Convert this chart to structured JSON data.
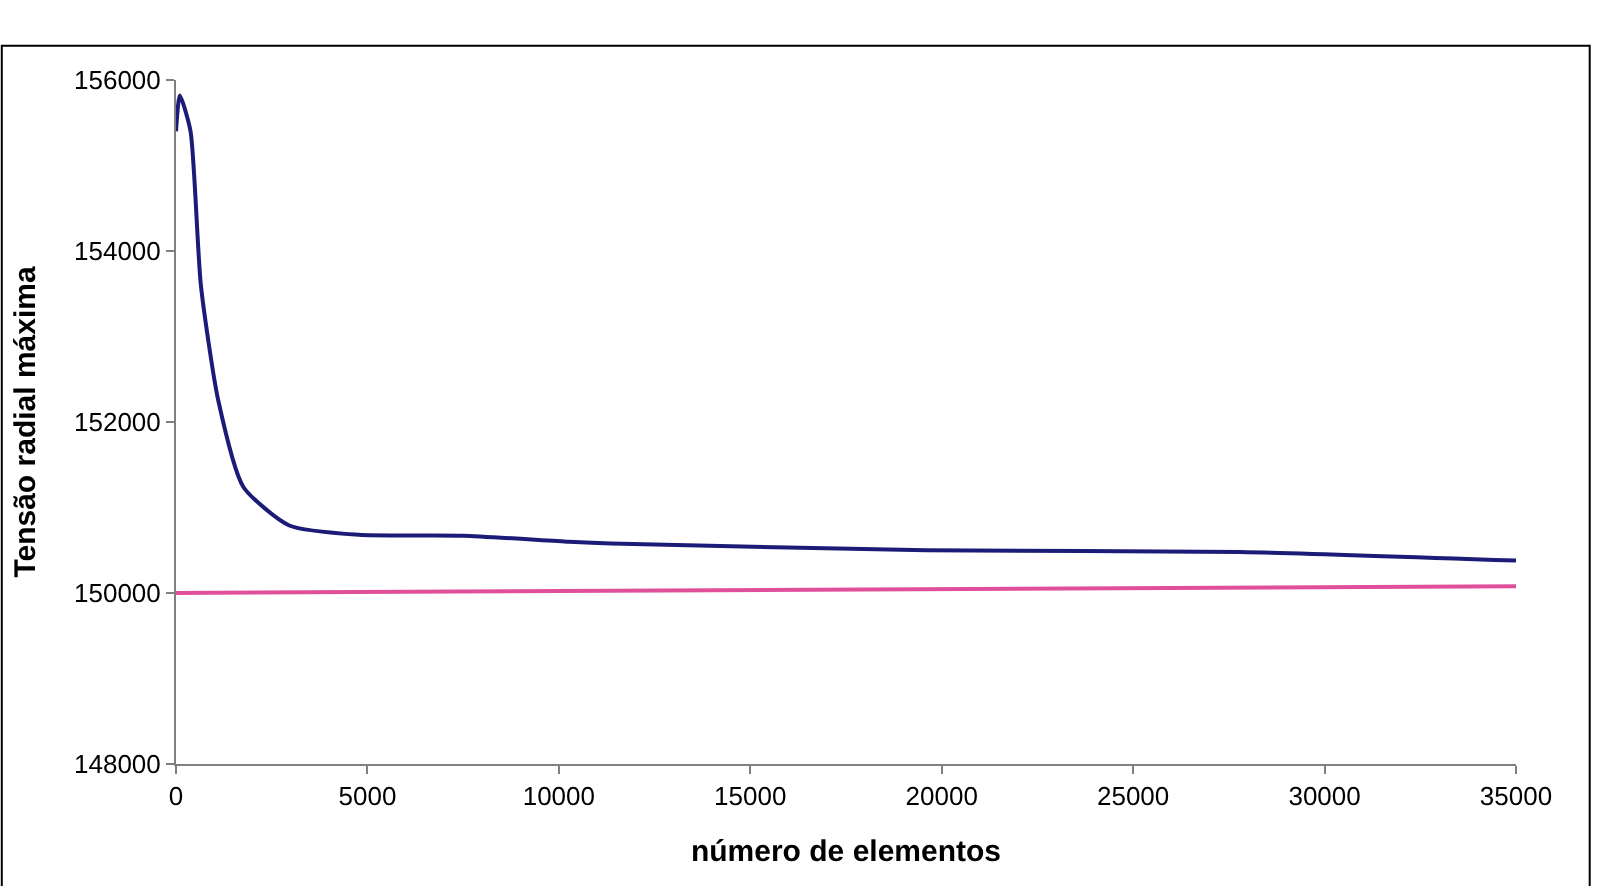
{
  "chart_data": {
    "type": "line",
    "xlabel": "número de elementos",
    "ylabel": "Tensão radial máxima",
    "xlim": [
      0,
      35000
    ],
    "xticks": [
      0,
      5000,
      10000,
      15000,
      20000,
      25000,
      30000,
      35000
    ],
    "ylim": [
      148000,
      156000
    ],
    "yticks": [
      148000,
      150000,
      152000,
      154000,
      156000
    ],
    "marker": "none",
    "line_style": "solid",
    "series": [
      {
        "color": "#1c1c78",
        "x": [
          0,
          100,
          380,
          650,
          1100,
          1760,
          2960,
          4770,
          7500,
          10260,
          11360,
          19600,
          27800,
          35000
        ],
        "values": [
          155400,
          155820,
          155400,
          153600,
          152260,
          151240,
          150790,
          150680,
          150670,
          150600,
          150580,
          150500,
          150480,
          150380
        ]
      },
      {
        "color": "#e0509a",
        "x": [
          0,
          35000
        ],
        "values": [
          150000,
          150080
        ]
      }
    ]
  }
}
